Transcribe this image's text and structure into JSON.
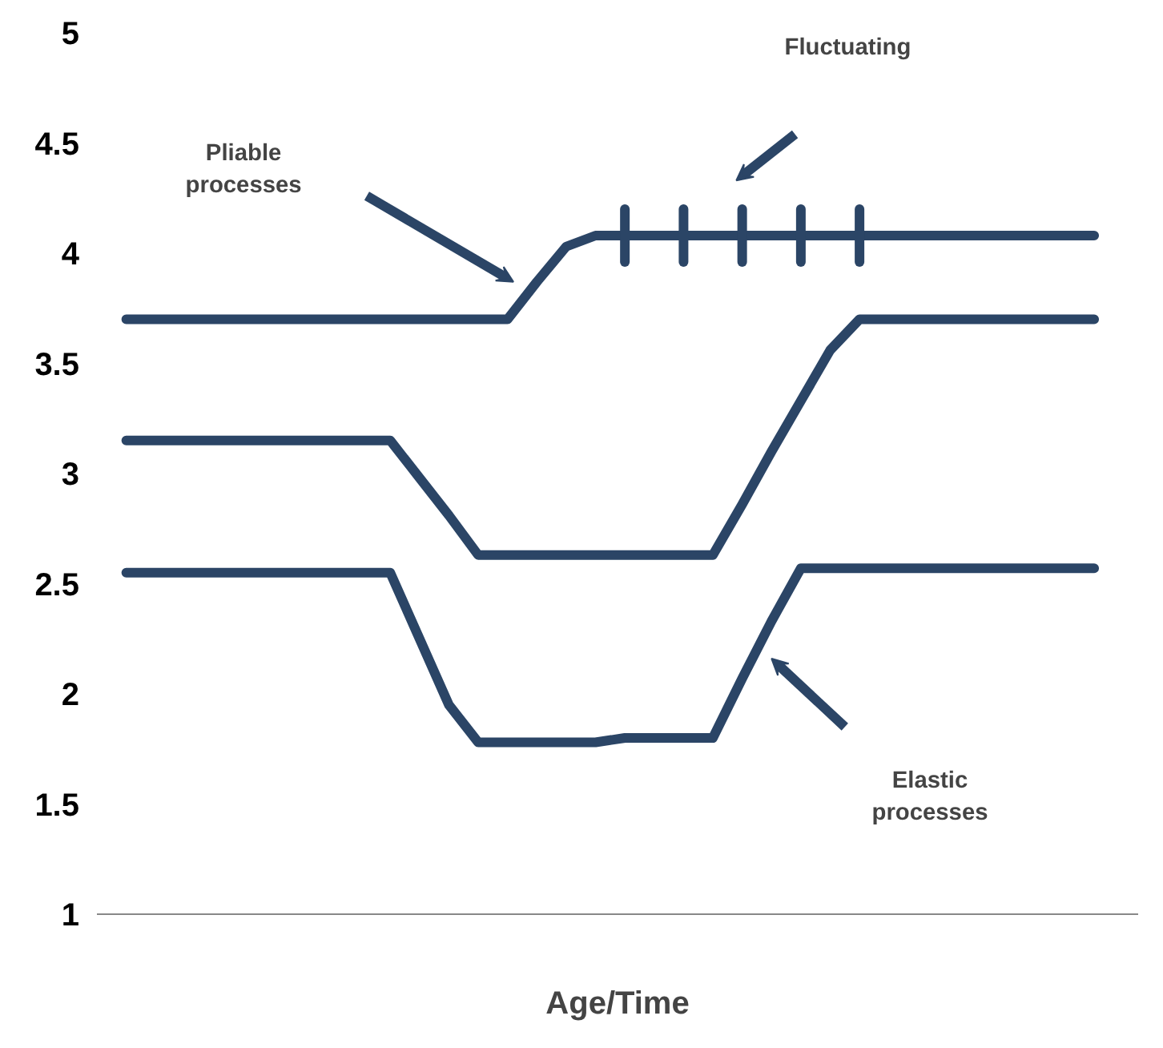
{
  "chart_data": {
    "type": "line",
    "xlabel": "Age/Time",
    "categories": [
      null,
      null,
      null,
      null,
      null,
      null,
      null,
      null,
      null,
      null,
      null,
      null,
      null,
      null,
      null,
      null,
      null,
      null,
      null,
      null,
      null,
      null,
      null,
      null,
      null,
      null,
      null,
      null,
      null,
      null,
      null,
      null,
      null,
      null
    ],
    "ylim": [
      1,
      5
    ],
    "yticks": [
      1,
      1.5,
      2,
      2.5,
      3,
      3.5,
      4,
      4.5,
      5
    ],
    "marker": "none",
    "line_style": "solid",
    "series": [
      {
        "color": "#2b4566",
        "values": [
          3.7,
          3.7,
          3.7,
          3.7,
          3.7,
          3.7,
          3.7,
          3.7,
          3.7,
          3.7,
          3.7,
          3.7,
          3.7,
          3.7,
          3.87,
          4.03,
          4.08,
          4.08,
          4.08,
          4.08,
          4.08,
          4.08,
          4.08,
          4.08,
          4.08,
          4.08,
          4.08,
          4.08,
          4.08,
          4.08,
          4.08,
          4.08,
          4.08,
          4.08
        ],
        "errors": [
          null,
          null,
          null,
          null,
          null,
          null,
          null,
          null,
          null,
          null,
          null,
          null,
          null,
          null,
          null,
          null,
          null,
          0.12,
          null,
          0.12,
          null,
          0.12,
          null,
          0.12,
          null,
          0.12,
          null,
          null,
          null,
          null,
          null,
          null,
          null,
          null
        ]
      },
      {
        "color": "#2b4566",
        "values": [
          3.15,
          3.15,
          3.15,
          3.15,
          3.15,
          3.15,
          3.15,
          3.15,
          3.15,
          3.15,
          2.98,
          2.81,
          2.63,
          2.63,
          2.63,
          2.63,
          2.63,
          2.63,
          2.63,
          2.63,
          2.63,
          2.86,
          3.1,
          3.33,
          3.56,
          3.7,
          3.7,
          3.7,
          3.7,
          3.7,
          3.7,
          3.7,
          3.7,
          3.7
        ]
      },
      {
        "color": "#2b4566",
        "values": [
          2.55,
          2.55,
          2.55,
          2.55,
          2.55,
          2.55,
          2.55,
          2.55,
          2.55,
          2.55,
          2.25,
          1.95,
          1.78,
          1.78,
          1.78,
          1.78,
          1.78,
          1.8,
          1.8,
          1.8,
          1.8,
          2.07,
          2.33,
          2.57,
          2.57,
          2.57,
          2.57,
          2.57,
          2.57,
          2.57,
          2.57,
          2.57,
          2.57,
          2.57
        ]
      }
    ],
    "annotations": [
      "Pliable processes",
      "Fluctuating",
      "Elastic processes"
    ]
  }
}
